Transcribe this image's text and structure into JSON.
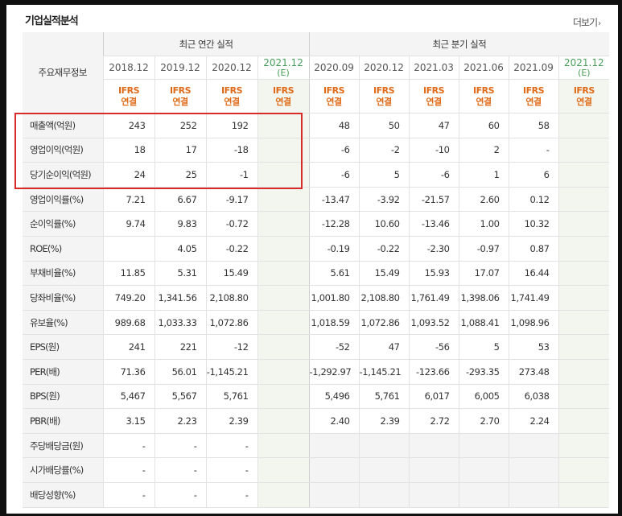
{
  "title": "기업실적분석",
  "more_label": "더보기",
  "more_icon": "chevron-right-icon",
  "row_header_label": "주요재무정보",
  "groups": [
    {
      "label": "최근 연간 실적"
    },
    {
      "label": "최근 분기 실적"
    }
  ],
  "periods": [
    {
      "label": "2018.12",
      "sub": "",
      "ifrs": "IFRS",
      "ifrs2": "연결"
    },
    {
      "label": "2019.12",
      "sub": "",
      "ifrs": "IFRS",
      "ifrs2": "연결"
    },
    {
      "label": "2020.12",
      "sub": "",
      "ifrs": "IFRS",
      "ifrs2": "연결"
    },
    {
      "label": "2021.12",
      "sub": "(E)",
      "ifrs": "IFRS",
      "ifrs2": "연결"
    },
    {
      "label": "2020.09",
      "sub": "",
      "ifrs": "IFRS",
      "ifrs2": "연결"
    },
    {
      "label": "2020.12",
      "sub": "",
      "ifrs": "IFRS",
      "ifrs2": "연결"
    },
    {
      "label": "2021.03",
      "sub": "",
      "ifrs": "IFRS",
      "ifrs2": "연결"
    },
    {
      "label": "2021.06",
      "sub": "",
      "ifrs": "IFRS",
      "ifrs2": "연결"
    },
    {
      "label": "2021.09",
      "sub": "",
      "ifrs": "IFRS",
      "ifrs2": "연결"
    },
    {
      "label": "2021.12",
      "sub": "(E)",
      "ifrs": "IFRS",
      "ifrs2": "연결"
    }
  ],
  "rows": [
    {
      "label": "매출액(억원)",
      "values": [
        "243",
        "252",
        "192",
        "",
        "48",
        "50",
        "47",
        "60",
        "58",
        ""
      ]
    },
    {
      "label": "영업이익(억원)",
      "values": [
        "18",
        "17",
        "-18",
        "",
        "-6",
        "-2",
        "-10",
        "2",
        "-",
        ""
      ]
    },
    {
      "label": "당기순이익(억원)",
      "values": [
        "24",
        "25",
        "-1",
        "",
        "-6",
        "5",
        "-6",
        "1",
        "6",
        ""
      ]
    },
    {
      "label": "영업이익률(%)",
      "values": [
        "7.21",
        "6.67",
        "-9.17",
        "",
        "-13.47",
        "-3.92",
        "-21.57",
        "2.60",
        "0.12",
        ""
      ]
    },
    {
      "label": "순이익률(%)",
      "values": [
        "9.74",
        "9.83",
        "-0.72",
        "",
        "-12.28",
        "10.60",
        "-13.46",
        "1.00",
        "10.32",
        ""
      ]
    },
    {
      "label": "ROE(%)",
      "values": [
        "",
        "4.05",
        "-0.22",
        "",
        "-0.19",
        "-0.22",
        "-2.30",
        "-0.97",
        "0.87",
        ""
      ]
    },
    {
      "label": "부채비율(%)",
      "values": [
        "11.85",
        "5.31",
        "15.49",
        "",
        "5.61",
        "15.49",
        "15.93",
        "17.07",
        "16.44",
        ""
      ]
    },
    {
      "label": "당좌비율(%)",
      "values": [
        "749.20",
        "1,341.56",
        "2,108.80",
        "",
        "1,001.80",
        "2,108.80",
        "1,761.49",
        "1,398.06",
        "1,741.49",
        ""
      ]
    },
    {
      "label": "유보율(%)",
      "values": [
        "989.68",
        "1,033.33",
        "1,072.86",
        "",
        "1,018.59",
        "1,072.86",
        "1,093.52",
        "1,088.41",
        "1,098.96",
        ""
      ]
    },
    {
      "label": "EPS(원)",
      "values": [
        "241",
        "221",
        "-12",
        "",
        "-52",
        "47",
        "-56",
        "5",
        "53",
        ""
      ]
    },
    {
      "label": "PER(배)",
      "values": [
        "71.36",
        "56.01",
        "-1,145.21",
        "",
        "-1,292.97",
        "-1,145.21",
        "-123.66",
        "-293.35",
        "273.48",
        ""
      ]
    },
    {
      "label": "BPS(원)",
      "values": [
        "5,467",
        "5,567",
        "5,761",
        "",
        "5,496",
        "5,761",
        "6,017",
        "6,005",
        "6,038",
        ""
      ]
    },
    {
      "label": "PBR(배)",
      "values": [
        "3.15",
        "2.23",
        "2.39",
        "",
        "2.40",
        "2.39",
        "2.72",
        "2.70",
        "2.24",
        ""
      ]
    },
    {
      "label": "주당배당금(원)",
      "values": [
        "-",
        "-",
        "-",
        "",
        "",
        "",
        "",
        "",
        "",
        ""
      ]
    },
    {
      "label": "시가배당률(%)",
      "values": [
        "-",
        "-",
        "-",
        "",
        "",
        "",
        "",
        "",
        "",
        ""
      ]
    },
    {
      "label": "배당성향(%)",
      "values": [
        "-",
        "-",
        "-",
        "",
        "",
        "",
        "",
        "",
        "",
        ""
      ]
    }
  ],
  "highlight_color": "#d92a2a",
  "negative_color": "#e03232",
  "ifrs_color": "#e06a17",
  "estimate_color": "#4aa05a"
}
